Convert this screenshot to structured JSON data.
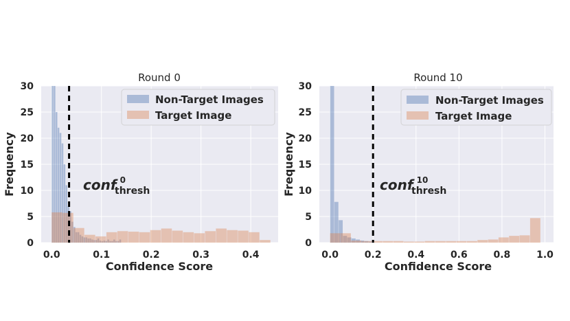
{
  "chart_data": [
    {
      "type": "bar",
      "title": "Round 0",
      "xlabel": "Confidence Score",
      "ylabel": "Frequency",
      "xlim": [
        -0.021,
        0.455
      ],
      "ylim": [
        0,
        30
      ],
      "xticks": [
        "0.0",
        "0.1",
        "0.2",
        "0.3",
        "0.4"
      ],
      "xtick_values": [
        0.0,
        0.1,
        0.2,
        0.3,
        0.4
      ],
      "yticks": [
        "0",
        "5",
        "10",
        "15",
        "20",
        "25",
        "30"
      ],
      "ytick_values": [
        0,
        5,
        10,
        15,
        20,
        25,
        30
      ],
      "grid": true,
      "legend_position": "top-right",
      "threshold": {
        "x": 0.035,
        "style": "dashed",
        "color": "#000000"
      },
      "annotation": {
        "base": "conf",
        "superscript": "0",
        "subscript": "thresh"
      },
      "series": [
        {
          "name": "Non-Target Images",
          "color": "#4C72B0",
          "bin_edges": [
            0.0,
            0.004,
            0.008,
            0.012,
            0.016,
            0.02,
            0.024,
            0.028,
            0.032,
            0.036,
            0.04,
            0.044,
            0.048,
            0.052,
            0.056,
            0.06,
            0.064,
            0.068,
            0.072,
            0.076,
            0.08,
            0.084,
            0.088,
            0.092,
            0.096,
            0.1,
            0.104,
            0.108,
            0.112,
            0.116,
            0.12,
            0.124,
            0.128,
            0.132,
            0.136,
            0.14
          ],
          "values": [
            30,
            30,
            25,
            22,
            21,
            19,
            15,
            11,
            7,
            6,
            4,
            3,
            2,
            2,
            1.5,
            1.2,
            1,
            1,
            0.8,
            0.8,
            0.6,
            0.5,
            0.5,
            0.8,
            0.4,
            0.3,
            0.4,
            0.3,
            0.6,
            0.3,
            0.3,
            0.6,
            0.3,
            0.3,
            0.6
          ]
        },
        {
          "name": "Target Image",
          "color": "#DD8452",
          "bin_edges": [
            0.0,
            0.022,
            0.044,
            0.066,
            0.088,
            0.11,
            0.132,
            0.154,
            0.176,
            0.198,
            0.22,
            0.242,
            0.264,
            0.286,
            0.308,
            0.33,
            0.352,
            0.374,
            0.396,
            0.418,
            0.44
          ],
          "values": [
            5.8,
            5.7,
            2.8,
            1.5,
            1.2,
            2.0,
            2.2,
            2.1,
            2.0,
            2.4,
            2.7,
            2.3,
            2.0,
            1.8,
            2.2,
            2.7,
            2.4,
            2.3,
            2.0,
            0.5
          ]
        }
      ]
    },
    {
      "type": "bar",
      "title": "Round 10",
      "xlabel": "Confidence Score",
      "ylabel": "Frequency",
      "xlim": [
        -0.05,
        1.04
      ],
      "ylim": [
        0,
        30
      ],
      "xticks": [
        "0.0",
        "0.2",
        "0.4",
        "0.6",
        "0.8",
        "1.0"
      ],
      "xtick_values": [
        0.0,
        0.2,
        0.4,
        0.6,
        0.8,
        1.0
      ],
      "yticks": [
        "0",
        "5",
        "10",
        "15",
        "20",
        "25",
        "30"
      ],
      "ytick_values": [
        0,
        5,
        10,
        15,
        20,
        25,
        30
      ],
      "grid": true,
      "legend_position": "top-right",
      "threshold": {
        "x": 0.2,
        "style": "dashed",
        "color": "#000000"
      },
      "annotation": {
        "base": "conf",
        "superscript": "10",
        "subscript": "thresh"
      },
      "series": [
        {
          "name": "Non-Target Images",
          "color": "#4C72B0",
          "bin_edges": [
            0.0,
            0.02,
            0.04,
            0.06,
            0.08,
            0.1,
            0.12,
            0.14,
            0.16,
            0.18,
            0.2
          ],
          "values": [
            30,
            7.8,
            4.3,
            1.3,
            1.0,
            0.8,
            0.6,
            0.4,
            0.3,
            0.2
          ]
        },
        {
          "name": "Target Image",
          "color": "#DD8452",
          "bin_edges": [
            0.0,
            0.049,
            0.098,
            0.147,
            0.196,
            0.245,
            0.294,
            0.343,
            0.392,
            0.441,
            0.49,
            0.539,
            0.588,
            0.637,
            0.686,
            0.735,
            0.784,
            0.833,
            0.882,
            0.931,
            0.98
          ],
          "values": [
            1.8,
            1.8,
            0.4,
            0.3,
            0.3,
            0.3,
            0.3,
            0.2,
            0.2,
            0.3,
            0.3,
            0.3,
            0.3,
            0.3,
            0.5,
            0.6,
            1.0,
            1.3,
            1.4,
            4.7
          ]
        }
      ]
    }
  ]
}
